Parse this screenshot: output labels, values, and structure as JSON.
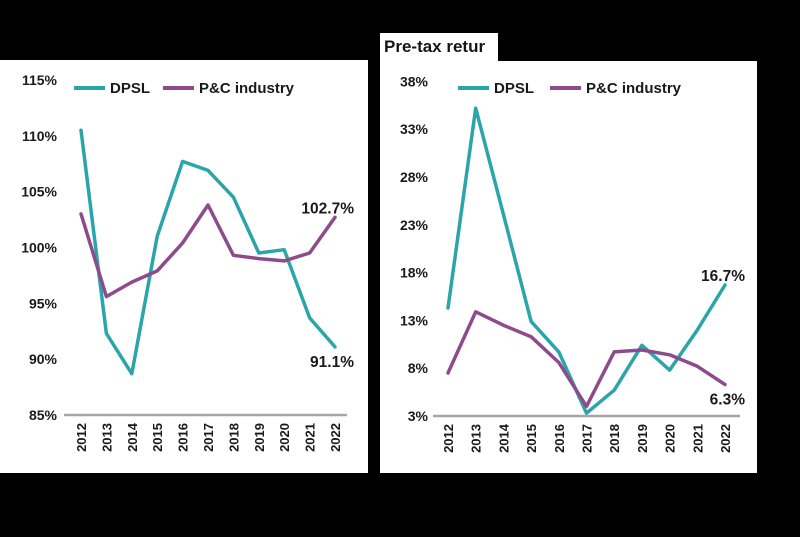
{
  "colors": {
    "background": "#000000",
    "panel": "#FFFFFF",
    "dpsl": "#2AA5AA",
    "industry": "#8D4B8E",
    "axis_line": "#A6A6A6",
    "text": "#1A1A1A"
  },
  "right_panel": {
    "title": "Pre-tax retur"
  },
  "chart_data": [
    {
      "type": "line",
      "title": "",
      "categories": [
        "2012",
        "2013",
        "2014",
        "2015",
        "2016",
        "2017",
        "2018",
        "2019",
        "2020",
        "2021",
        "2022"
      ],
      "series": [
        {
          "name": "DPSL",
          "color": "#2AA5AA",
          "values": [
            110.5,
            92.3,
            88.7,
            101.0,
            107.7,
            106.9,
            104.5,
            99.5,
            99.8,
            93.7,
            91.1
          ]
        },
        {
          "name": "P&C industry",
          "color": "#8D4B8E",
          "values": [
            103.0,
            95.6,
            96.9,
            97.9,
            100.4,
            103.8,
            99.3,
            99.0,
            98.8,
            99.5,
            102.7
          ]
        }
      ],
      "ylim": [
        85,
        115
      ],
      "yticks": [
        {
          "value": 115,
          "label": "115%"
        },
        {
          "value": 110,
          "label": "110%"
        },
        {
          "value": 105,
          "label": "105%"
        },
        {
          "value": 100,
          "label": "100%"
        },
        {
          "value": 95,
          "label": "95%"
        },
        {
          "value": 90,
          "label": "90%"
        },
        {
          "value": 85,
          "label": "85%"
        }
      ],
      "legend": [
        "DPSL",
        "P&C industry"
      ],
      "legend_position": "top",
      "grid": false,
      "end_labels": [
        {
          "series": 1,
          "text": "102.7%",
          "position": "above"
        },
        {
          "series": 0,
          "text": "91.1%",
          "position": "below"
        }
      ]
    },
    {
      "type": "line",
      "title": "Pre-tax retur",
      "categories": [
        "2012",
        "2013",
        "2014",
        "2015",
        "2016",
        "2017",
        "2018",
        "2019",
        "2020",
        "2021",
        "2022"
      ],
      "series": [
        {
          "name": "DPSL",
          "color": "#2AA5AA",
          "values": [
            14.3,
            35.2,
            24.1,
            12.9,
            9.7,
            3.3,
            5.7,
            10.4,
            7.8,
            12.0,
            16.7
          ]
        },
        {
          "name": "P&C industry",
          "color": "#8D4B8E",
          "values": [
            7.5,
            13.9,
            12.5,
            11.3,
            8.6,
            4.0,
            9.7,
            9.9,
            9.4,
            8.2,
            6.3
          ]
        }
      ],
      "ylim": [
        3,
        38
      ],
      "yticks": [
        {
          "value": 38,
          "label": "38%"
        },
        {
          "value": 33,
          "label": "33%"
        },
        {
          "value": 28,
          "label": "28%"
        },
        {
          "value": 23,
          "label": "23%"
        },
        {
          "value": 18,
          "label": "18%"
        },
        {
          "value": 13,
          "label": "13%"
        },
        {
          "value": 8,
          "label": "8%"
        },
        {
          "value": 3,
          "label": "3%"
        }
      ],
      "legend": [
        "DPSL",
        "P&C industry"
      ],
      "legend_position": "top",
      "grid": false,
      "end_labels": [
        {
          "series": 0,
          "text": "16.7%",
          "position": "above"
        },
        {
          "series": 1,
          "text": "6.3%",
          "position": "below"
        }
      ]
    }
  ]
}
